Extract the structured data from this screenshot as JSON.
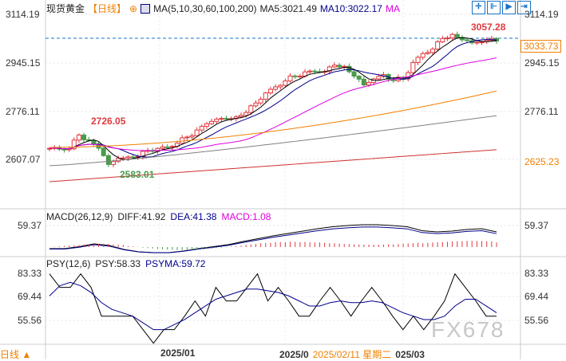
{
  "header": {
    "title": "现货黄金",
    "period": "【日线】",
    "ma_label": "MA(5,10,30,60,100,200)",
    "ma5": "MA5:3021.49",
    "ma10": "MA10:3022.17",
    "ma_more": "MA"
  },
  "toolbar": [
    "crosshair",
    "fit",
    "play",
    "next"
  ],
  "price_axis": {
    "left": [
      "3114.19",
      "2945.15",
      "2776.11",
      "2607.07"
    ],
    "right": [
      "3114.19",
      "2945.15",
      "2776.11"
    ],
    "current": "3033.73",
    "ma60_value": "2625.23"
  },
  "annotations": {
    "high": "3057.28",
    "mid_high": "2726.05",
    "low": "2583.01"
  },
  "macd": {
    "label": "MACD(26,12,9)",
    "diff": "DIFF:41.92",
    "dea": "DEA:41.38",
    "macd": "MACD:1.08",
    "axis": "59.37"
  },
  "psy": {
    "label": "PSY(12,6)",
    "psy": "PSY:58.33",
    "psyma": "PSYMA:59.72",
    "axis": [
      "83.33",
      "69.44",
      "55.56"
    ]
  },
  "bottom": {
    "period": "日线",
    "dates": [
      "2025/01",
      "2025/0",
      "2025/02/11 星期二",
      "025/03"
    ]
  },
  "watermark": "FX678",
  "colors": {
    "up": "#e0393e",
    "down": "#4a9a4a",
    "ma5": "#000000",
    "ma10": "#00008b",
    "ma30": "#e000e0",
    "ma60": "#f08000",
    "ma100": "#808080",
    "ma200": "#d03030"
  },
  "chart_data": {
    "type": "candlestick",
    "price_range": [
      2520,
      3130
    ],
    "closes": [
      2640.6,
      2643.4,
      2649.0,
      2690.7,
      2668.5,
      2649.0,
      2593.2,
      2607.1,
      2612.7,
      2621.0,
      2640.6,
      2640.6,
      2649.0,
      2668.5,
      2685.2,
      2704.7,
      2732.6,
      2752.1,
      2746.5,
      2752.1,
      2774.3,
      2807.8,
      2835.6,
      2857.9,
      2885.7,
      2899.7,
      2908.0,
      2913.6,
      2919.2,
      2935.9,
      2927.5,
      2899.7,
      2871.8,
      2885.7,
      2899.7,
      2885.7,
      2891.3,
      2941.5,
      2974.9,
      2997.2,
      3030.6,
      3039.0,
      3025.1,
      3019.5,
      3016.7,
      3025.1
    ],
    "ma60": [
      2649,
      2846
    ],
    "ma100": [
      2585,
      2760
    ],
    "ma200": [
      2529,
      2641
    ],
    "macd_diff": [
      0,
      0,
      5,
      12,
      8,
      -2,
      -8,
      -10,
      -10,
      -6,
      0,
      5,
      10,
      18,
      25,
      32,
      38,
      44,
      50,
      55,
      58,
      60,
      60,
      58,
      55,
      45,
      42,
      44,
      48,
      50,
      42
    ],
    "psy": [
      83,
      75,
      75,
      83,
      75,
      58,
      58,
      58,
      58,
      50,
      42,
      50,
      50,
      58,
      67,
      58,
      75,
      67,
      67,
      75,
      83,
      67,
      75,
      67,
      58,
      58,
      67,
      75,
      67,
      58,
      67,
      75,
      67,
      58,
      50,
      58,
      50,
      58,
      67,
      83,
      75,
      67,
      58,
      58
    ],
    "psyma": [
      70,
      76,
      78,
      76,
      72,
      66,
      62,
      60,
      58,
      54,
      50,
      50,
      53,
      56,
      60,
      64,
      68,
      70,
      72,
      74,
      74,
      73,
      72,
      70,
      67,
      64,
      64,
      66,
      67,
      66,
      66,
      67,
      66,
      63,
      60,
      58,
      56,
      56,
      58,
      64,
      68,
      68,
      64,
      60
    ]
  }
}
